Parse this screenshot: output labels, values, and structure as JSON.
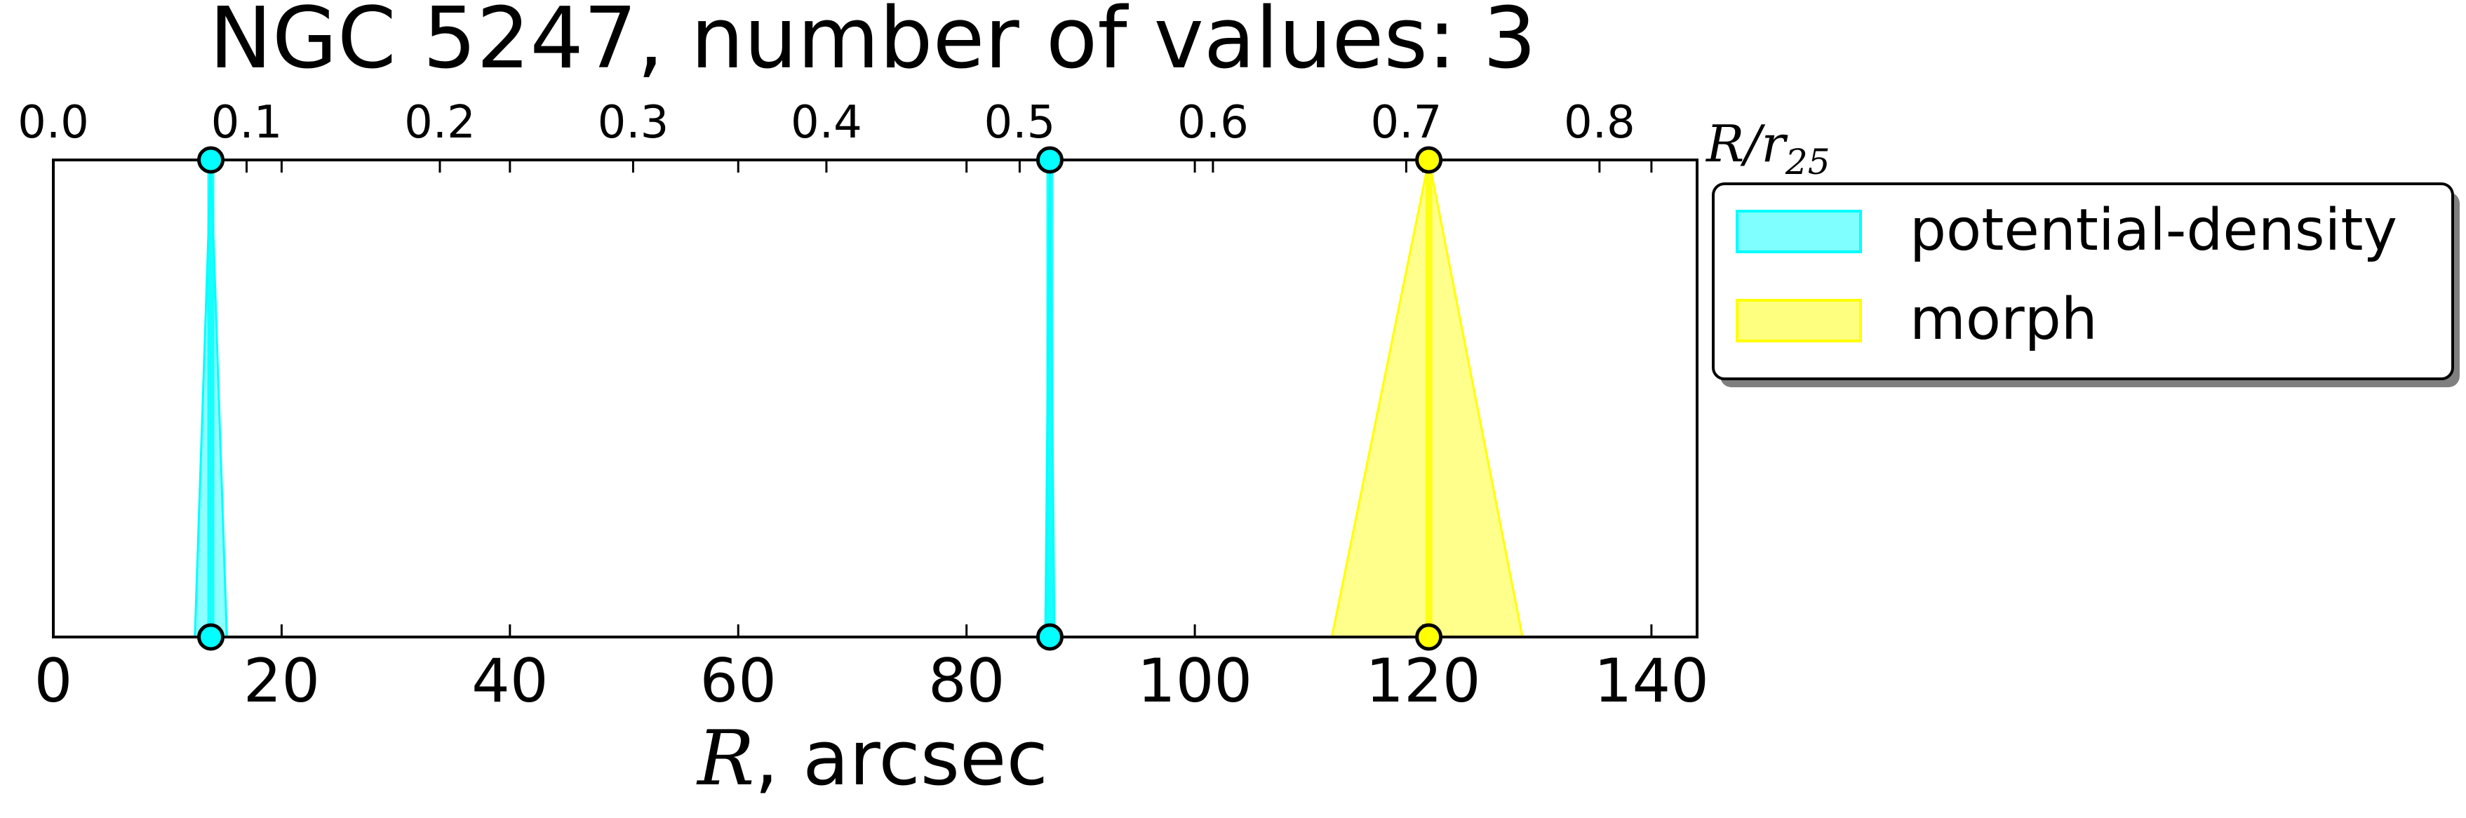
{
  "chart_data": {
    "type": "scatter",
    "title": "NGC 5247, number of values: 3",
    "xlabel": {
      "math": "R",
      "text": ", arcsec"
    },
    "x2label": {
      "math": "R/r",
      "sub": "25"
    },
    "xlim": [
      0,
      144
    ],
    "xticks": [
      "0",
      "20",
      "40",
      "60",
      "80",
      "100",
      "120",
      "140"
    ],
    "x2lim": [
      0,
      0.8505
    ],
    "x2ticks": [
      "0.0",
      "0.1",
      "0.2",
      "0.3",
      "0.4",
      "0.5",
      "0.6",
      "0.7",
      "0.8"
    ],
    "ylim": [
      0,
      1
    ],
    "grid": false,
    "legend_position": "outside-right",
    "series": [
      {
        "name": "potential-density",
        "color": "#00ffff",
        "markers": [
          {
            "x": 13.8,
            "x_lo": 12.4,
            "x_hi": 15.2
          },
          {
            "x": 87.3,
            "x_lo": 86.9,
            "x_hi": 87.7
          }
        ]
      },
      {
        "name": "morph",
        "color": "#ffff00",
        "markers": [
          {
            "x": 120.5,
            "x_lo": 112.0,
            "x_hi": 128.7
          }
        ]
      }
    ]
  }
}
